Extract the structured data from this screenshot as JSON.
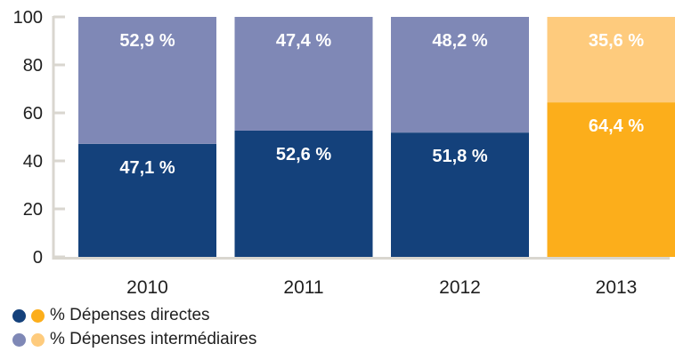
{
  "chart_data": {
    "type": "bar",
    "stacked": true,
    "categories": [
      "2010",
      "2011",
      "2012",
      "2013"
    ],
    "series": [
      {
        "name": "% Dépenses directes",
        "values": [
          47.1,
          52.6,
          51.8,
          64.4
        ],
        "labels": [
          "47,1 %",
          "52,6 %",
          "51,8 %",
          "64,4 %"
        ]
      },
      {
        "name": "% Dépenses intermédiaires",
        "values": [
          52.9,
          47.4,
          48.2,
          35.6
        ],
        "labels": [
          "52,9 %",
          "47,4 %",
          "48,2 %",
          "35,6 %"
        ]
      }
    ],
    "colors": {
      "direct": "#14417b",
      "intermediate": "#7f88b6",
      "direct_highlight": "#fcae1b",
      "intermediate_highlight": "#fecb7d",
      "axis": "#d9d6cf"
    },
    "highlight_category": "2013",
    "ylim": [
      0,
      100
    ],
    "yticks": [
      "0",
      "20",
      "40",
      "60",
      "80",
      "100"
    ],
    "grid": false,
    "legend_position": "bottom-left"
  }
}
